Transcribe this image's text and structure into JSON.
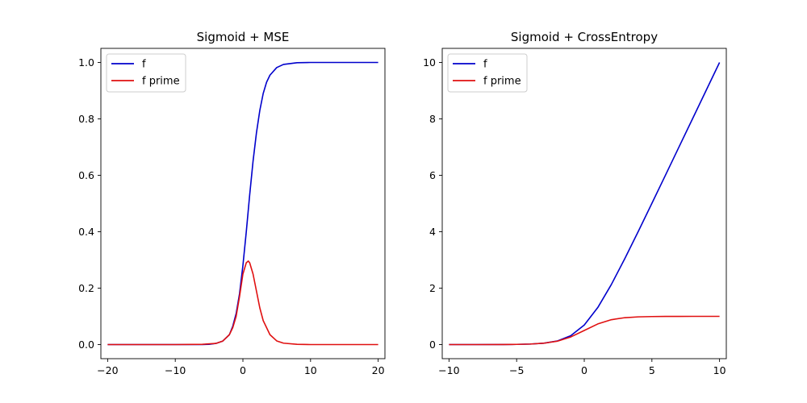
{
  "chart_data": [
    {
      "type": "line",
      "title": "Sigmoid + MSE",
      "xlabel": "",
      "ylabel": "",
      "xlim": [
        -21,
        21
      ],
      "ylim": [
        -0.05,
        1.05
      ],
      "xticks": [
        -20,
        -10,
        0,
        10,
        20
      ],
      "xtick_labels": [
        "−20",
        "−10",
        "0",
        "10",
        "20"
      ],
      "yticks": [
        0.0,
        0.2,
        0.4,
        0.6,
        0.8,
        1.0
      ],
      "ytick_labels": [
        "0.0",
        "0.2",
        "0.4",
        "0.6",
        "0.8",
        "1.0"
      ],
      "legend": "top-left",
      "grid": false,
      "series": [
        {
          "name": "f",
          "color": "#0000cc",
          "x": [
            -20,
            -10,
            -6,
            -5,
            -4,
            -3,
            -2,
            -1.5,
            -1,
            -0.5,
            0,
            0.5,
            1,
            1.5,
            2,
            2.5,
            3,
            3.5,
            4,
            5,
            6,
            8,
            10,
            15,
            20
          ],
          "y": [
            0.0,
            0.0,
            0.0,
            0.001,
            0.004,
            0.012,
            0.035,
            0.065,
            0.11,
            0.18,
            0.28,
            0.4,
            0.53,
            0.65,
            0.75,
            0.83,
            0.89,
            0.93,
            0.955,
            0.982,
            0.993,
            0.999,
            1.0,
            1.0,
            1.0
          ]
        },
        {
          "name": "f prime",
          "color": "#e01010",
          "x": [
            -20,
            -10,
            -6,
            -4,
            -3,
            -2,
            -1.5,
            -1,
            -0.5,
            0,
            0.5,
            0.8,
            1,
            1.5,
            2,
            2.5,
            3,
            4,
            5,
            6,
            8,
            10,
            15,
            20
          ],
          "y": [
            0.0,
            0.0,
            0.001,
            0.004,
            0.012,
            0.035,
            0.06,
            0.1,
            0.17,
            0.25,
            0.29,
            0.296,
            0.29,
            0.25,
            0.19,
            0.13,
            0.085,
            0.035,
            0.013,
            0.005,
            0.001,
            0.0,
            0.0,
            0.0
          ]
        }
      ]
    },
    {
      "type": "line",
      "title": "Sigmoid + CrossEntropy",
      "xlabel": "",
      "ylabel": "",
      "xlim": [
        -10.5,
        10.5
      ],
      "ylim": [
        -0.5,
        10.5
      ],
      "xticks": [
        -10,
        -5,
        0,
        5,
        10
      ],
      "xtick_labels": [
        "−10",
        "−5",
        "0",
        "5",
        "10"
      ],
      "yticks": [
        0,
        2,
        4,
        6,
        8,
        10
      ],
      "ytick_labels": [
        "0",
        "2",
        "4",
        "6",
        "8",
        "10"
      ],
      "legend": "top-left",
      "grid": false,
      "series": [
        {
          "name": "f",
          "color": "#0000cc",
          "x": [
            -10,
            -8,
            -6,
            -5,
            -4,
            -3,
            -2,
            -1,
            0,
            1,
            2,
            3,
            4,
            5,
            6,
            7,
            8,
            9,
            10
          ],
          "y": [
            0.0,
            0.0,
            0.002,
            0.007,
            0.018,
            0.049,
            0.127,
            0.313,
            0.693,
            1.313,
            2.127,
            3.049,
            4.018,
            5.007,
            6.002,
            7.001,
            8.0,
            9.0,
            10.0
          ]
        },
        {
          "name": "f prime",
          "color": "#e01010",
          "x": [
            -10,
            -8,
            -6,
            -5,
            -4,
            -3,
            -2,
            -1,
            0,
            1,
            2,
            3,
            4,
            5,
            6,
            7,
            8,
            9,
            10
          ],
          "y": [
            0.0,
            0.0,
            0.002,
            0.007,
            0.018,
            0.047,
            0.119,
            0.269,
            0.5,
            0.731,
            0.881,
            0.953,
            0.982,
            0.993,
            0.998,
            0.999,
            1.0,
            1.0,
            1.0
          ]
        }
      ]
    }
  ]
}
